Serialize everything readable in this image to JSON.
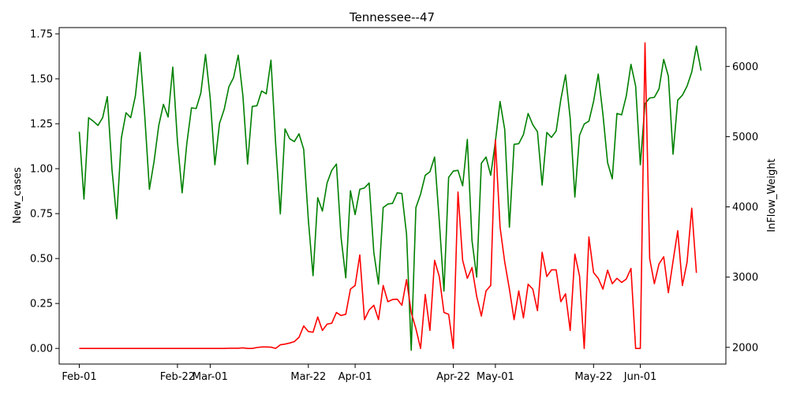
{
  "chart_data": {
    "type": "line",
    "title": "Tennessee--47",
    "xlabel": "",
    "ylabel_left": "New_cases",
    "ylabel_right": "InFlow_Weight",
    "x_start": "2022-02-01",
    "x_ticks": [
      {
        "day": 0,
        "label": "Feb-01"
      },
      {
        "day": 21,
        "label": "Feb-22"
      },
      {
        "day": 28,
        "label": "Mar-01"
      },
      {
        "day": 49,
        "label": "Mar-22"
      },
      {
        "day": 59,
        "label": "Apr-01"
      },
      {
        "day": 80,
        "label": "Apr-22"
      },
      {
        "day": 89,
        "label": "May-01"
      },
      {
        "day": 110,
        "label": "May-22"
      },
      {
        "day": 120,
        "label": "Jun-01"
      }
    ],
    "xlim_days": [
      -4.3,
      138.3
    ],
    "ylim_left": [
      -0.087,
      1.785
    ],
    "ylim_right": [
      1762,
      6553
    ],
    "yticks_left": [
      0.0,
      0.25,
      0.5,
      0.75,
      1.0,
      1.25,
      1.5,
      1.75
    ],
    "yticks_left_labels": [
      "0.00",
      "0.25",
      "0.50",
      "0.75",
      "1.00",
      "1.25",
      "1.50",
      "1.75"
    ],
    "yticks_right": [
      2000,
      3000,
      4000,
      5000,
      6000
    ],
    "yticks_right_labels": [
      "2000",
      "3000",
      "4000",
      "5000",
      "6000"
    ],
    "grid": false,
    "legend": "none",
    "series": [
      {
        "axis": "left",
        "color": "#ff0000",
        "values": [
          0,
          0,
          0,
          0,
          0,
          0,
          0,
          0,
          0,
          0,
          0,
          0,
          0,
          0,
          0,
          0,
          0,
          0,
          0,
          0,
          0,
          0,
          0,
          0,
          0,
          0,
          0,
          0,
          0,
          0,
          0,
          0,
          0.001,
          0.001,
          0.001,
          0.003,
          0,
          0,
          0.005,
          0.008,
          0.008,
          0.007,
          0,
          0.02,
          0.024,
          0.03,
          0.038,
          0.062,
          0.125,
          0.094,
          0.09,
          0.175,
          0.1,
          0.135,
          0.14,
          0.2,
          0.183,
          0.19,
          0.33,
          0.35,
          0.52,
          0.16,
          0.214,
          0.24,
          0.16,
          0.35,
          0.26,
          0.272,
          0.274,
          0.24,
          0.383,
          0.2,
          0.11,
          0,
          0.3,
          0.1,
          0.49,
          0.4,
          0.2,
          0.19,
          0,
          0.87,
          0.49,
          0.39,
          0.45,
          0.29,
          0.18,
          0.32,
          0.35,
          1.16,
          0.675,
          0.48,
          0.33,
          0.16,
          0.32,
          0.17,
          0.357,
          0.33,
          0.21,
          0.535,
          0.4,
          0.437,
          0.437,
          0.26,
          0.304,
          0.1,
          0.525,
          0.403,
          0,
          0.62,
          0.422,
          0.39,
          0.33,
          0.435,
          0.36,
          0.39,
          0.367,
          0.386,
          0.445,
          0,
          0,
          1.7,
          0.5,
          0.36,
          0.47,
          0.51,
          0.31,
          0.485,
          0.655,
          0.35,
          0.48,
          0.78,
          0.42
        ]
      },
      {
        "axis": "right",
        "color": "#008000",
        "values": [
          5070,
          4110,
          5270,
          5220,
          5160,
          5270,
          5570,
          4530,
          3830,
          4980,
          5340,
          5270,
          5580,
          6200,
          5300,
          4250,
          4650,
          5160,
          5460,
          5280,
          5990,
          4930,
          4200,
          4900,
          5410,
          5400,
          5620,
          6170,
          5550,
          4600,
          5190,
          5390,
          5710,
          5840,
          6160,
          5580,
          4610,
          5430,
          5440,
          5650,
          5610,
          6090,
          4900,
          3900,
          5110,
          4970,
          4930,
          5040,
          4820,
          3810,
          3020,
          4130,
          3940,
          4340,
          4520,
          4610,
          3560,
          2990,
          4230,
          3890,
          4250,
          4270,
          4340,
          3350,
          2900,
          3990,
          4040,
          4050,
          4200,
          4190,
          3610,
          1960,
          3990,
          4180,
          4450,
          4500,
          4710,
          3800,
          2800,
          4420,
          4510,
          4520,
          4300,
          4960,
          3520,
          3000,
          4620,
          4710,
          4450,
          4930,
          5500,
          5100,
          3710,
          4890,
          4900,
          5030,
          5330,
          5170,
          5070,
          4310,
          5060,
          4990,
          5080,
          5530,
          5880,
          5260,
          4140,
          5020,
          5180,
          5220,
          5500,
          5890,
          5320,
          4630,
          4400,
          5330,
          5310,
          5580,
          6030,
          5720,
          4600,
          5470,
          5550,
          5560,
          5680,
          6100,
          5860,
          4750,
          5520,
          5590,
          5720,
          5920,
          6290,
          5940
        ]
      }
    ]
  }
}
